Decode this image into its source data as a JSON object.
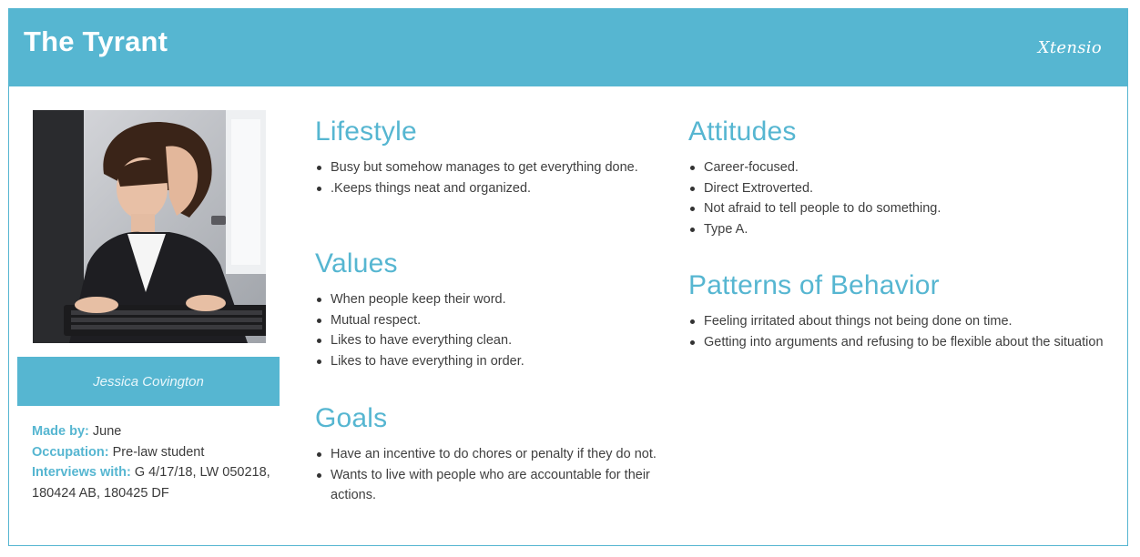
{
  "header": {
    "title": "The Tyrant",
    "brand": "Xtensio"
  },
  "persona": {
    "name": "Jessica Covington",
    "made_by_label": "Made by:",
    "made_by_value": "June",
    "occupation_label": "Occupation:",
    "occupation_value": "Pre-law student",
    "interviews_label": "Interviews with:",
    "interviews_value": "G 4/17/18, LW 050218, 180424 AB, 180425 DF"
  },
  "sections": {
    "lifestyle": {
      "heading": "Lifestyle",
      "items": [
        "Busy but somehow manages to get everything done.",
        ".Keeps things neat and organized."
      ]
    },
    "values": {
      "heading": "Values",
      "items": [
        "When people keep their word.",
        "Mutual respect.",
        "Likes to have everything clean.",
        "Likes to have everything in order."
      ]
    },
    "goals": {
      "heading": "Goals",
      "items": [
        "Have an incentive to do chores or penalty if they do not.",
        "Wants to live with people who are accountable for their actions."
      ]
    },
    "attitudes": {
      "heading": "Attitudes",
      "items": [
        "Career-focused.",
        "Direct Extroverted.",
        "Not afraid to tell people to do something.",
        "Type A."
      ]
    },
    "patterns": {
      "heading": "Patterns of Behavior",
      "items": [
        "Feeling irritated about things not being done on time.",
        "Getting into arguments and refusing to be flexible about the situation"
      ]
    }
  },
  "colors": {
    "accent": "#56b6d1",
    "text": "#3f3f3f",
    "background": "#ffffff"
  }
}
